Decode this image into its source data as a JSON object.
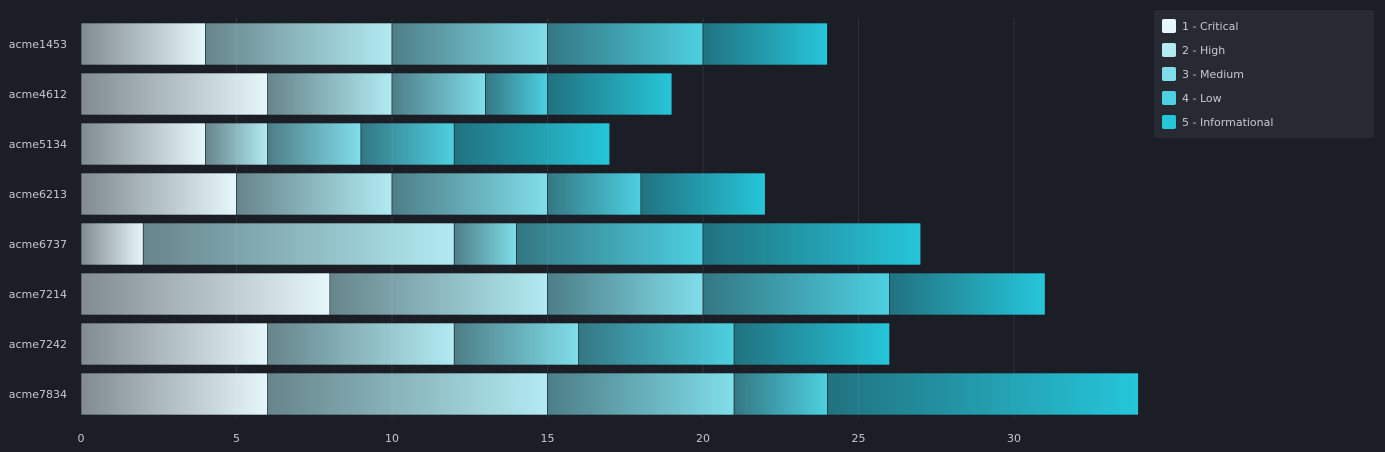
{
  "chart_data": {
    "type": "bar",
    "orientation": "horizontal",
    "stacked": true,
    "categories": [
      "acme1453",
      "acme4612",
      "acme5134",
      "acme6213",
      "acme6737",
      "acme7214",
      "acme7242",
      "acme7834"
    ],
    "series": [
      {
        "name": "1 - Critical",
        "color": "#e6f7fb",
        "values": [
          4,
          6,
          4,
          5,
          2,
          8,
          6,
          6
        ]
      },
      {
        "name": "2 - High",
        "color": "#b2ebf2",
        "values": [
          6,
          4,
          2,
          5,
          10,
          7,
          6,
          9
        ]
      },
      {
        "name": "3 - Medium",
        "color": "#80deea",
        "values": [
          5,
          3,
          3,
          5,
          2,
          5,
          4,
          6
        ]
      },
      {
        "name": "4 - Low",
        "color": "#4dd0e1",
        "values": [
          5,
          2,
          3,
          3,
          6,
          6,
          5,
          3
        ]
      },
      {
        "name": "5 - Informational",
        "color": "#26c6da",
        "values": [
          4,
          4,
          5,
          4,
          7,
          5,
          5,
          10
        ]
      }
    ],
    "xticks": [
      0,
      5,
      10,
      15,
      20,
      25,
      30
    ],
    "xlim": [
      0,
      34
    ],
    "grid": "vertical",
    "legend_position": "top-right"
  }
}
